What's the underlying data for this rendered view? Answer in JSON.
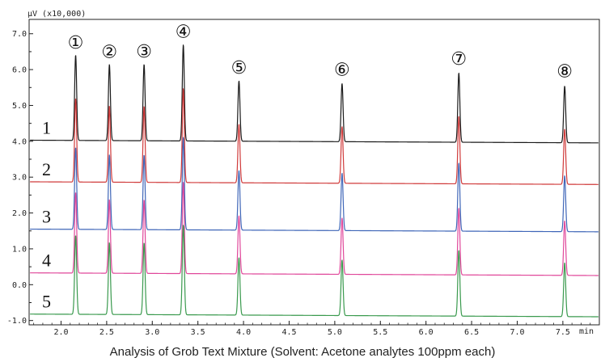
{
  "chart_data": {
    "type": "line",
    "title": "",
    "caption": "Analysis of Grob Text Mixture (Solvent: Acetone analytes 100ppm each)",
    "ylabel": "µV (x10,000)",
    "xlabel": "min",
    "xlim": [
      1.65,
      7.9
    ],
    "ylim": [
      -1.12,
      7.4
    ],
    "x_ticks": [
      "2.0",
      "2.5",
      "3.0",
      "3.5",
      "4.0",
      "4.5",
      "5.0",
      "5.5",
      "6.0",
      "6.5",
      "7.0",
      "7.5"
    ],
    "x_tick_values": [
      2.0,
      2.5,
      3.0,
      3.5,
      4.0,
      4.5,
      5.0,
      5.5,
      6.0,
      6.5,
      7.0,
      7.5
    ],
    "y_ticks": [
      "7.0",
      "6.0",
      "5.0",
      "4.0",
      "3.0",
      "2.0",
      "1.0",
      "0.0",
      "-1.0"
    ],
    "y_tick_values": [
      7.0,
      6.0,
      5.0,
      4.0,
      3.0,
      2.0,
      1.0,
      0.0,
      -1.0
    ],
    "peaks": [
      {
        "label": "①",
        "rt": 2.16
      },
      {
        "label": "②",
        "rt": 2.53
      },
      {
        "label": "③",
        "rt": 2.91
      },
      {
        "label": "④",
        "rt": 3.34
      },
      {
        "label": "⑤",
        "rt": 3.95
      },
      {
        "label": "⑥",
        "rt": 5.08
      },
      {
        "label": "⑦",
        "rt": 6.36
      },
      {
        "label": "⑧",
        "rt": 7.52
      }
    ],
    "series": [
      {
        "name": "1",
        "color": "#1a1a1a",
        "baseline": 4.03,
        "heights": [
          2.38,
          2.12,
          2.13,
          2.68,
          1.68,
          1.62,
          1.93,
          1.58
        ]
      },
      {
        "name": "2",
        "color": "#d03a3a",
        "baseline": 2.87,
        "heights": [
          2.33,
          2.12,
          2.12,
          2.62,
          1.63,
          1.58,
          1.88,
          1.54
        ]
      },
      {
        "name": "3",
        "color": "#3f66b8",
        "baseline": 1.55,
        "heights": [
          2.28,
          2.08,
          2.08,
          2.58,
          1.66,
          1.6,
          1.9,
          1.56
        ]
      },
      {
        "name": "4",
        "color": "#e0479a",
        "baseline": 0.33,
        "heights": [
          2.25,
          2.05,
          2.05,
          2.55,
          1.62,
          1.57,
          1.86,
          1.52
        ]
      },
      {
        "name": "5",
        "color": "#3a9a4e",
        "baseline": -0.82,
        "heights": [
          2.2,
          2.0,
          2.0,
          2.5,
          1.6,
          1.55,
          1.83,
          1.5
        ]
      }
    ]
  }
}
